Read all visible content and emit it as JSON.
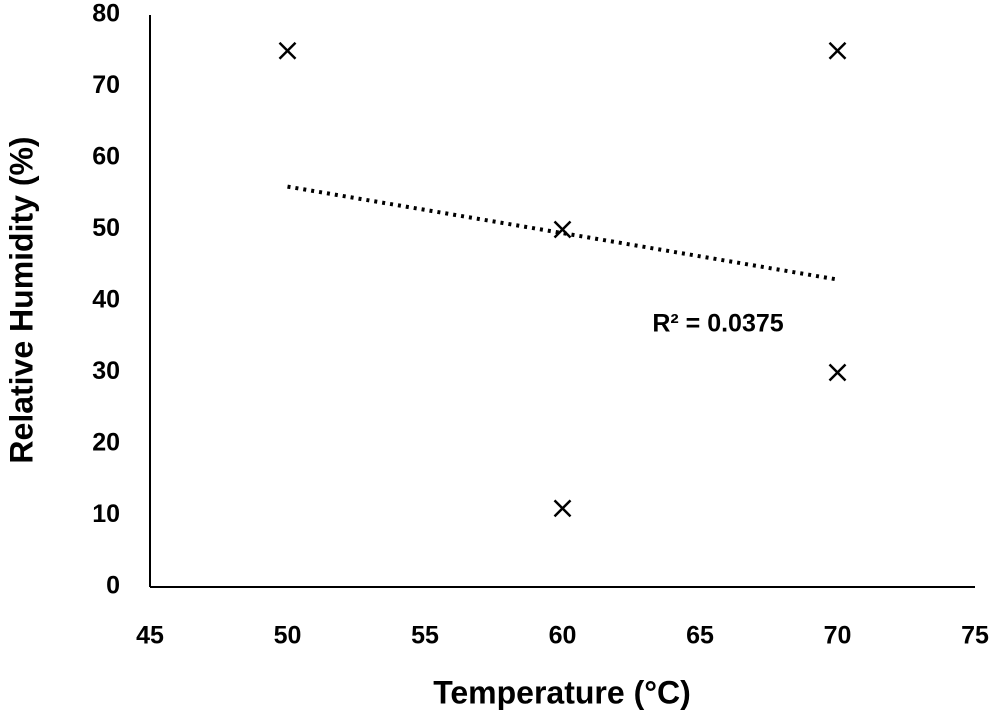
{
  "chart_data": {
    "type": "scatter",
    "x_label": "Temperature (°C)",
    "y_label": "Relative Humidity (%)",
    "annotation": "R² = 0.0375",
    "series": [
      {
        "name": "Relative Humidity",
        "color": "#000000",
        "marker": "x",
        "x": [
          50,
          60,
          60,
          70,
          70
        ],
        "values": [
          75,
          50,
          11,
          75,
          30
        ]
      }
    ],
    "trendline": {
      "x": [
        50,
        70
      ],
      "y": [
        56,
        43
      ],
      "color": "#000000",
      "style": "dotted"
    },
    "xlim": [
      45,
      75
    ],
    "xticks": [
      45,
      50,
      55,
      60,
      65,
      70,
      75
    ],
    "ylim": [
      0,
      80
    ],
    "yticks": [
      0,
      10,
      20,
      30,
      40,
      50,
      60,
      70,
      80
    ],
    "grid": false
  }
}
